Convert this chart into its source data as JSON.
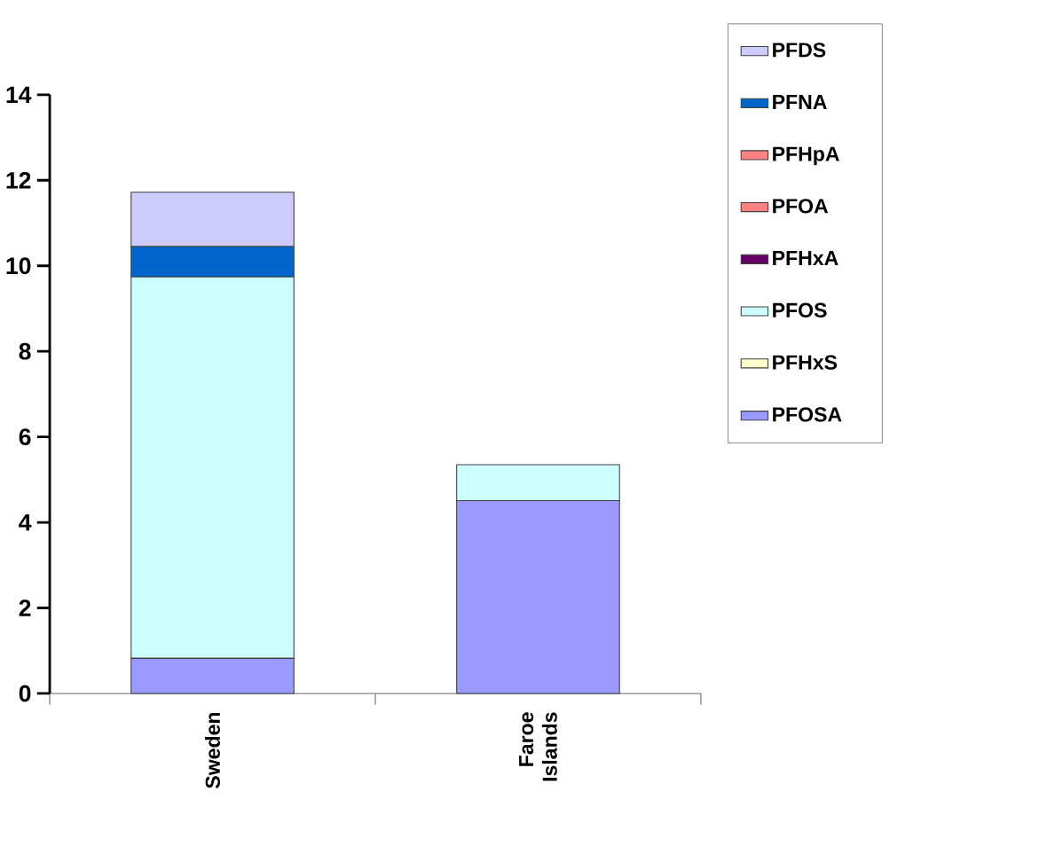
{
  "chart_data": {
    "type": "bar",
    "stacked": true,
    "categories": [
      "Sweden",
      "Faroe Islands"
    ],
    "series": [
      {
        "name": "PFOSA",
        "color": "#9999ff",
        "values": [
          0.82,
          4.51
        ]
      },
      {
        "name": "PFHxS",
        "color": "#ffffcc",
        "values": [
          0,
          0
        ]
      },
      {
        "name": "PFOS",
        "color": "#ccffff",
        "values": [
          8.92,
          0.84
        ]
      },
      {
        "name": "PFHxA",
        "color": "#660066",
        "values": [
          0,
          0
        ]
      },
      {
        "name": "PFOA",
        "color": "#ff8080",
        "values": [
          0,
          0
        ]
      },
      {
        "name": "PFHpA",
        "color": "#ff8080",
        "values": [
          0,
          0
        ]
      },
      {
        "name": "PFNA",
        "color": "#0066cc",
        "values": [
          0.71,
          0
        ]
      },
      {
        "name": "PFDS",
        "color": "#ccccff",
        "values": [
          1.27,
          0
        ]
      }
    ],
    "ylim": [
      0,
      14
    ],
    "yticks": [
      0,
      2,
      4,
      6,
      8,
      10,
      12,
      14
    ],
    "legend": "right"
  }
}
